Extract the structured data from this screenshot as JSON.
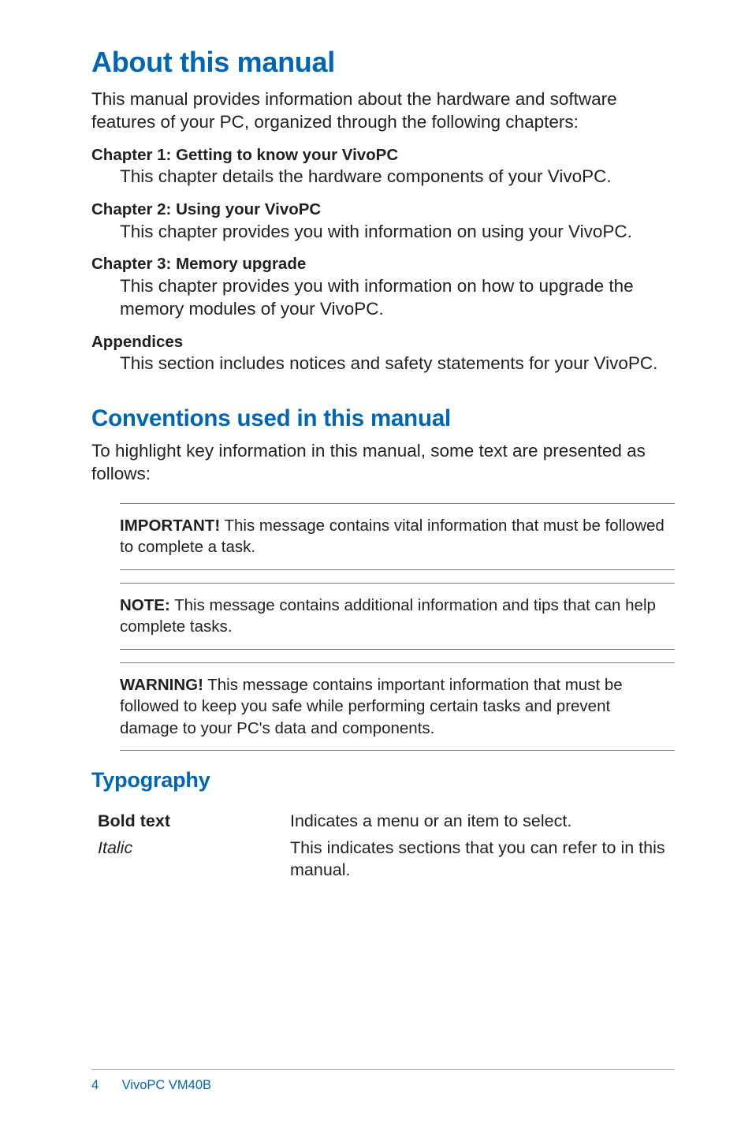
{
  "colors": {
    "heading": "#0066b3",
    "body_text": "#231f20",
    "note_border": "#7b7b7b",
    "footer_border": "#a6a6a6",
    "background": "#ffffff"
  },
  "typography": {
    "h1_size_pt": 27,
    "h2_size_pt": 22,
    "h3_size_pt": 20,
    "body_size_pt": 17,
    "section_title_size_pt": 15.5,
    "note_size_pt": 15.5,
    "footer_size_pt": 12.5,
    "font_family": "Segoe UI / Myriad-like sans-serif"
  },
  "h1": "About this manual",
  "intro": "This manual provides information about the hardware and software features of your PC, organized through the following chapters:",
  "sections": [
    {
      "title": "Chapter 1: Getting to know your VivoPC",
      "body": "This chapter details the hardware components of your VivoPC."
    },
    {
      "title": "Chapter 2: Using your VivoPC",
      "body": "This chapter provides you with information on using your VivoPC."
    },
    {
      "title": "Chapter 3: Memory upgrade",
      "body": "This chapter provides you with information on how to upgrade the memory modules of your VivoPC."
    },
    {
      "title": "Appendices",
      "body": "This section includes notices and safety statements for your VivoPC."
    }
  ],
  "h2": "Conventions used in this manual",
  "subintro": "To highlight key information in this manual, some text are presented as follows:",
  "notes": [
    {
      "label": "IMPORTANT!",
      "text": " This message contains vital information that must be followed to complete a task."
    },
    {
      "label": "NOTE:",
      "text": " This message contains additional information and tips that can help complete tasks."
    },
    {
      "label": "WARNING!",
      "text": " This message contains important information that must be followed to keep you safe while performing certain tasks and prevent damage to your PC's data and components."
    }
  ],
  "h3": "Typography",
  "typo_rows": [
    {
      "left": "Bold text",
      "left_style": "bold",
      "right": "Indicates a menu or an item to select."
    },
    {
      "left": "Italic",
      "left_style": "italic",
      "right": "This indicates sections that you can refer to in this manual."
    }
  ],
  "footer": {
    "page": "4",
    "doc": "VivoPC VM40B"
  }
}
